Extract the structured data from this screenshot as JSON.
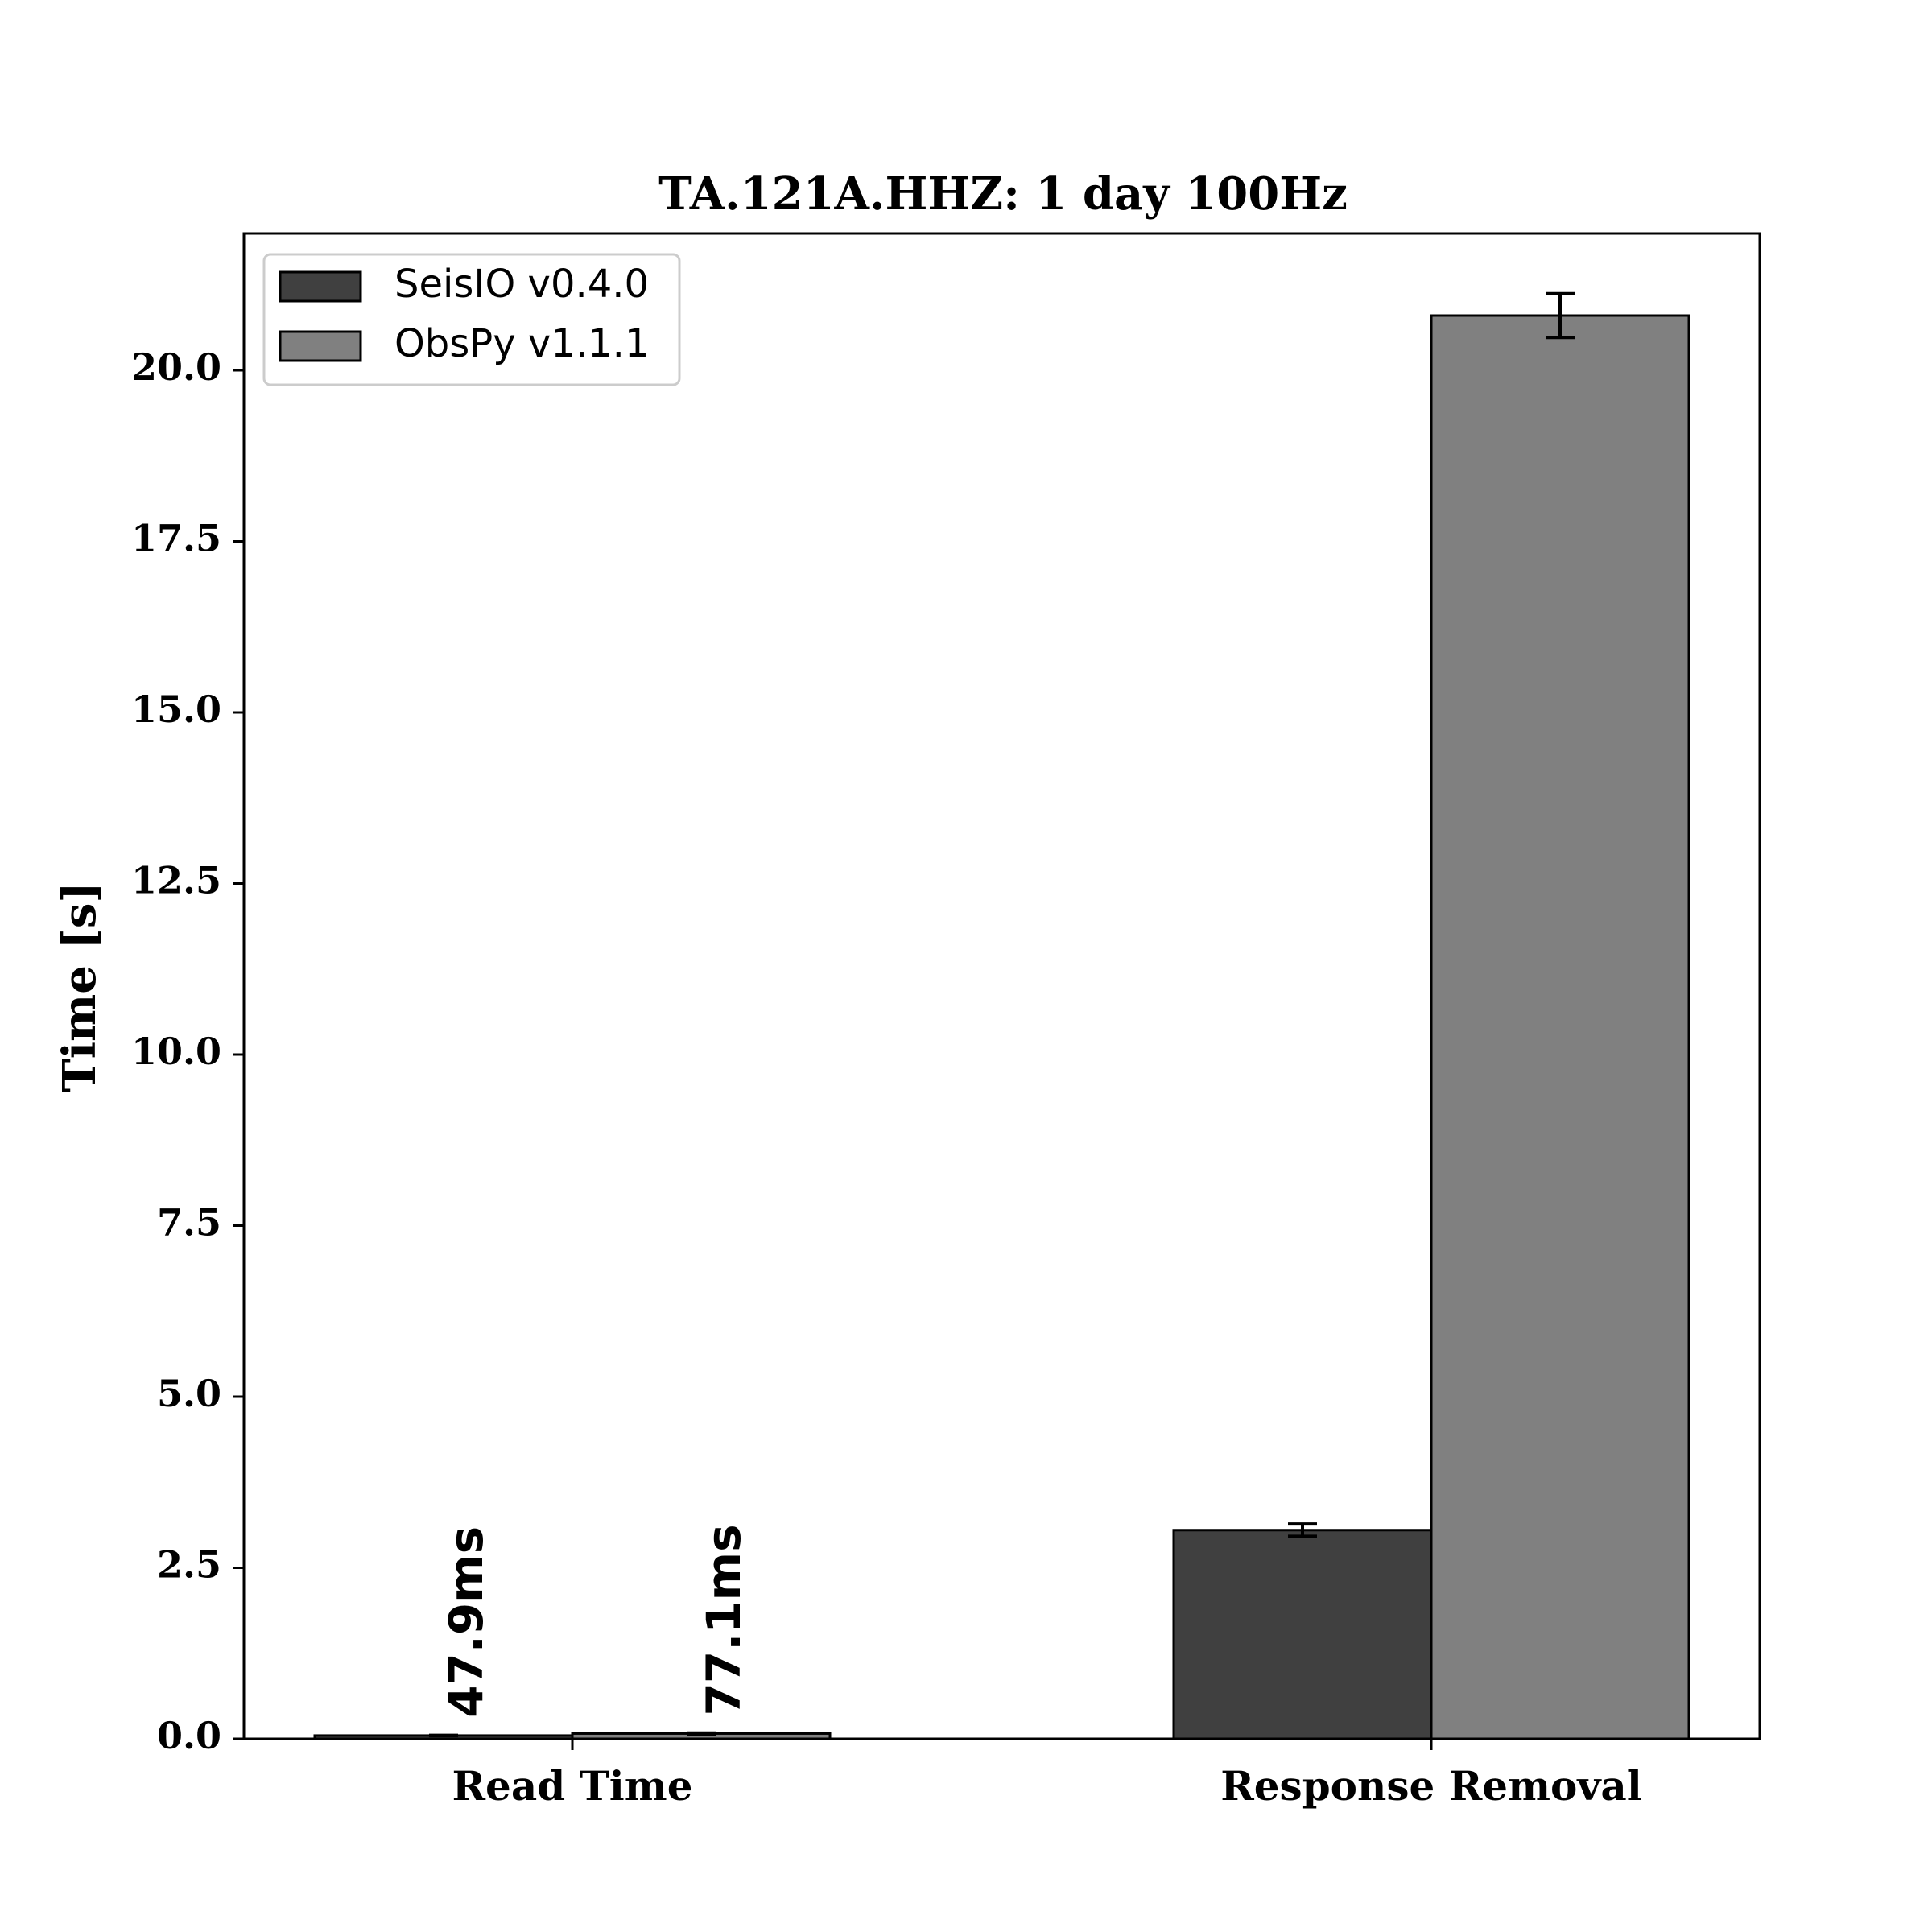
{
  "chart_data": {
    "type": "bar",
    "title": "TA.121A.HHZ: 1 day 100Hz",
    "xlabel": "",
    "ylabel": "Time [s]",
    "categories": [
      "Read Time",
      "Response Removal"
    ],
    "ylim": [
      0,
      22
    ],
    "yticks": [
      0.0,
      2.5,
      5.0,
      7.5,
      10.0,
      12.5,
      15.0,
      17.5,
      20.0
    ],
    "ytick_labels": [
      "0.0",
      "2.5",
      "5.0",
      "7.5",
      "10.0",
      "12.5",
      "15.0",
      "17.5",
      "20.0"
    ],
    "grid": false,
    "legend_position": "top-left",
    "series": [
      {
        "name": "SeisIO v0.4.0",
        "color": "#404040",
        "values": [
          0.0479,
          3.05
        ],
        "errors": [
          0.003,
          0.09
        ],
        "value_labels": [
          "47.9ms",
          ""
        ]
      },
      {
        "name": "ObsPy v1.1.1",
        "color": "#808080",
        "values": [
          0.0771,
          20.8
        ],
        "errors": [
          0.008,
          0.32
        ],
        "value_labels": [
          "77.1ms",
          ""
        ]
      }
    ]
  }
}
